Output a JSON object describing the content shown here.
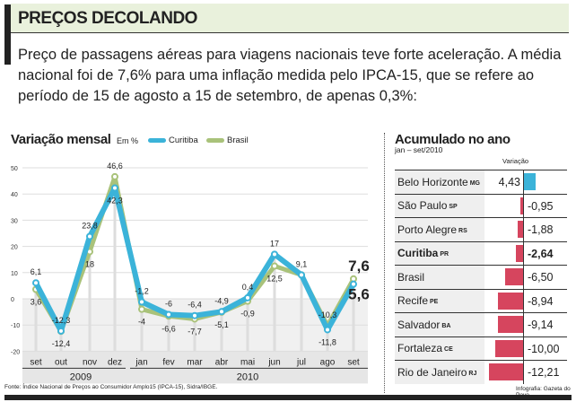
{
  "header": {
    "title": "PREÇOS DECOLANDO",
    "intro": "Preço de passagens aéreas para viagens nacionais teve forte aceleração. A média nacional foi de 7,6% para uma inflação medida pelo IPCA-15, que se refere ao período de 15 de agosto a 15 de setembro, de apenas 0,3%:"
  },
  "chart_data": {
    "type": "line",
    "title": "Variação mensal",
    "unit": "Em %",
    "categories": [
      "set",
      "out",
      "nov",
      "dez",
      "jan",
      "fev",
      "mar",
      "abr",
      "mai",
      "jun",
      "jul",
      "ago",
      "set"
    ],
    "years": [
      {
        "label": "2009",
        "months": 4
      },
      {
        "label": "2010",
        "months": 9
      }
    ],
    "ylim": [
      -20,
      50
    ],
    "yticks": [
      50,
      40,
      30,
      20,
      10,
      0,
      -10,
      -20
    ],
    "grid": true,
    "legend": "top",
    "series": [
      {
        "name": "Curitiba",
        "color": "#3bb3d9",
        "values": [
          6.1,
          -12.3,
          23.8,
          42.3,
          -1.2,
          -6,
          -6.4,
          -4.9,
          0.4,
          17,
          9.1,
          -11.8,
          5.6
        ],
        "labels": [
          "6,1",
          "-12,3",
          "23,8",
          "42,3",
          "-1,2",
          "-6",
          "-6,4",
          "-4,9",
          "0,4",
          "17",
          "9,1",
          "-11,8",
          "5,6"
        ]
      },
      {
        "name": "Brasil",
        "color": "#a9c27a",
        "values": [
          3.6,
          -12.4,
          18,
          46.6,
          -4,
          -6.6,
          -7.7,
          -5.1,
          -0.9,
          12.5,
          9.1,
          -10.3,
          7.6
        ],
        "labels": [
          "3,6",
          "-12,4",
          "18",
          "46,6",
          "-4",
          "-6,6",
          "-7,7",
          "-5,1",
          "-0,9",
          "12,5",
          "",
          "-10,3",
          "7,6"
        ]
      }
    ]
  },
  "source": "Fonte: Índice Nacional de Preços ao Consumidor Amplo15 (IPCA-15), Sidra/IBGE.",
  "accum": {
    "title": "Acumulado no ano",
    "subtitle": "jan – set/2010",
    "col_header": "Variação",
    "rows": [
      {
        "name": "Belo Horizonte",
        "state": "MG",
        "value": 4.43,
        "label": "4,43"
      },
      {
        "name": "São Paulo",
        "state": "SP",
        "value": -0.95,
        "label": "-0,95"
      },
      {
        "name": "Porto Alegre",
        "state": "RS",
        "value": -1.88,
        "label": "-1,88"
      },
      {
        "name": "Curitiba",
        "state": "PR",
        "value": -2.64,
        "label": "-2,64",
        "bold": true
      },
      {
        "name": "Brasil",
        "state": "",
        "value": -6.5,
        "label": "-6,50"
      },
      {
        "name": "Recife",
        "state": "PE",
        "value": -8.94,
        "label": "-8,94"
      },
      {
        "name": "Salvador",
        "state": "BA",
        "value": -9.14,
        "label": "-9,14"
      },
      {
        "name": "Fortaleza",
        "state": "CE",
        "value": -10.0,
        "label": "-10,00"
      },
      {
        "name": "Rio de Janeiro",
        "state": "RJ",
        "value": -12.21,
        "label": "-12,21"
      }
    ],
    "pos_color": "#3bb3d9",
    "neg_color": "#d6455e"
  },
  "credit": "Infografia: Gazeta do Povo"
}
